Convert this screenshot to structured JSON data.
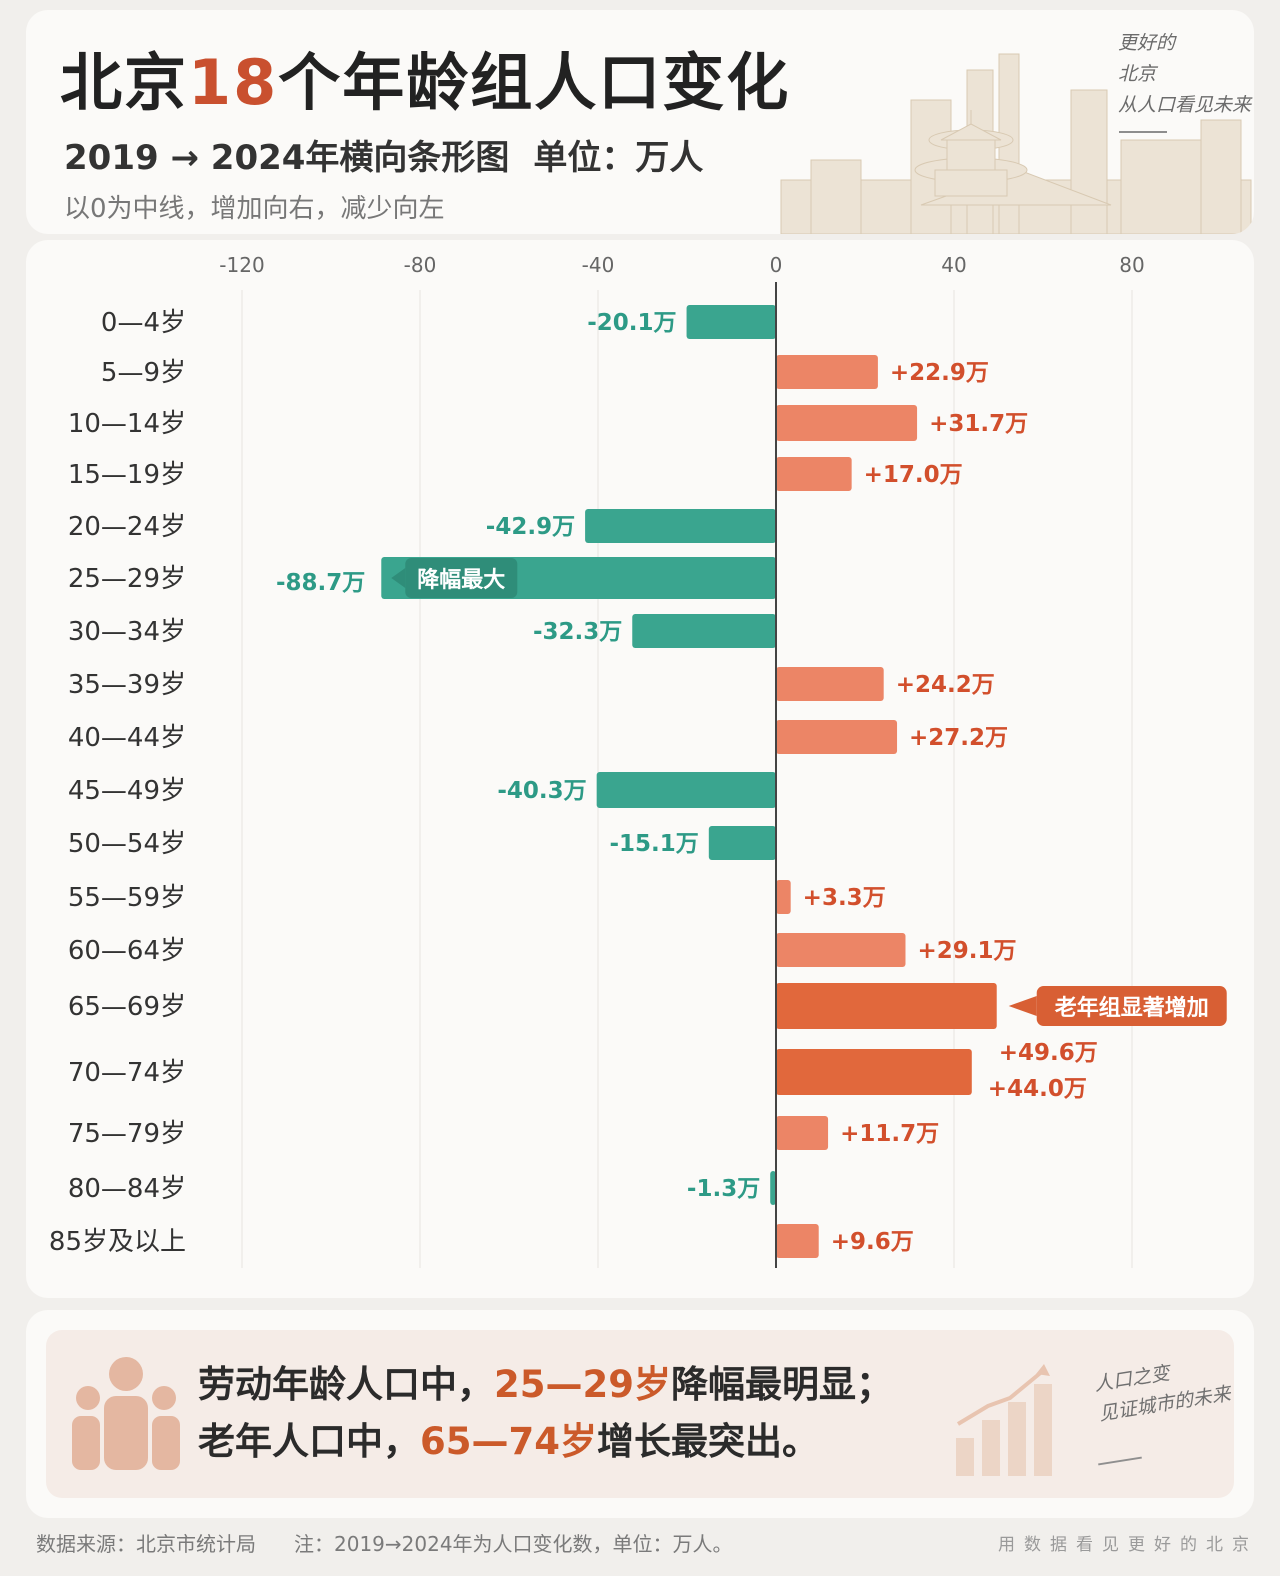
{
  "header": {
    "title_pre": "北京",
    "title_num": "18",
    "title_post": "个年龄组人口变化",
    "subtitle": "2019 → 2024年横向条形图",
    "unit": "单位：万人",
    "note": "以0为中线，增加向右，减少向左",
    "motto": [
      "更好的",
      "北京",
      "从人口看见未来"
    ]
  },
  "chart_data": {
    "type": "bar",
    "orientation": "horizontal",
    "title": "北京18个年龄组人口变化",
    "xlabel": "",
    "ylabel": "",
    "xlim": [
      -120,
      90
    ],
    "xticks": [
      -120,
      -80,
      -40,
      0,
      40,
      80
    ],
    "grid": true,
    "categories": [
      "0—4岁",
      "5—9岁",
      "10—14岁",
      "15—19岁",
      "20—24岁",
      "25—29岁",
      "30—34岁",
      "35—39岁",
      "40—44岁",
      "45—49岁",
      "50—54岁",
      "55—59岁",
      "60—64岁",
      "65—69岁",
      "70—74岁",
      "75—79岁",
      "80—84岁",
      "85岁及以上"
    ],
    "values": [
      -20.1,
      22.9,
      31.7,
      17.0,
      -42.9,
      -88.7,
      -32.3,
      24.2,
      27.2,
      -40.3,
      -15.1,
      3.3,
      29.1,
      49.6,
      44.0,
      11.7,
      -1.3,
      9.6
    ],
    "value_labels": [
      "-20.1万",
      "+22.9万",
      "+31.7万",
      "+17.0万",
      "-42.9万",
      "-88.7万",
      "-32.3万",
      "+24.2万",
      "+27.2万",
      "-40.3万",
      "-15.1万",
      "+3.3万",
      "+29.1万",
      "+49.6万",
      "+44.0万",
      "+11.7万",
      "-1.3万",
      "+9.6万"
    ],
    "colors": {
      "decrease": "#3aa58f",
      "increase": "#ec8566",
      "highlight_increase": "#e1683c"
    },
    "annotations": [
      {
        "category": "25—29岁",
        "text": "降幅最大"
      },
      {
        "category": "65—69岁",
        "text": "老年组显著增加"
      }
    ]
  },
  "summary": {
    "line1_pre": "劳动年龄人口中，",
    "line1_hl": "25—29岁",
    "line1_post": "降幅最明显；",
    "line2_pre": "老年人口中，",
    "line2_hl": "65—74岁",
    "line2_post": "增长最突出。",
    "motto": [
      "人口之变",
      "见证城市的未来"
    ]
  },
  "footer": {
    "source": "数据来源：北京市统计局",
    "note": "注：2019→2024年为人口变化数，单位：万人。",
    "right": "用数据看见更好的北京"
  }
}
